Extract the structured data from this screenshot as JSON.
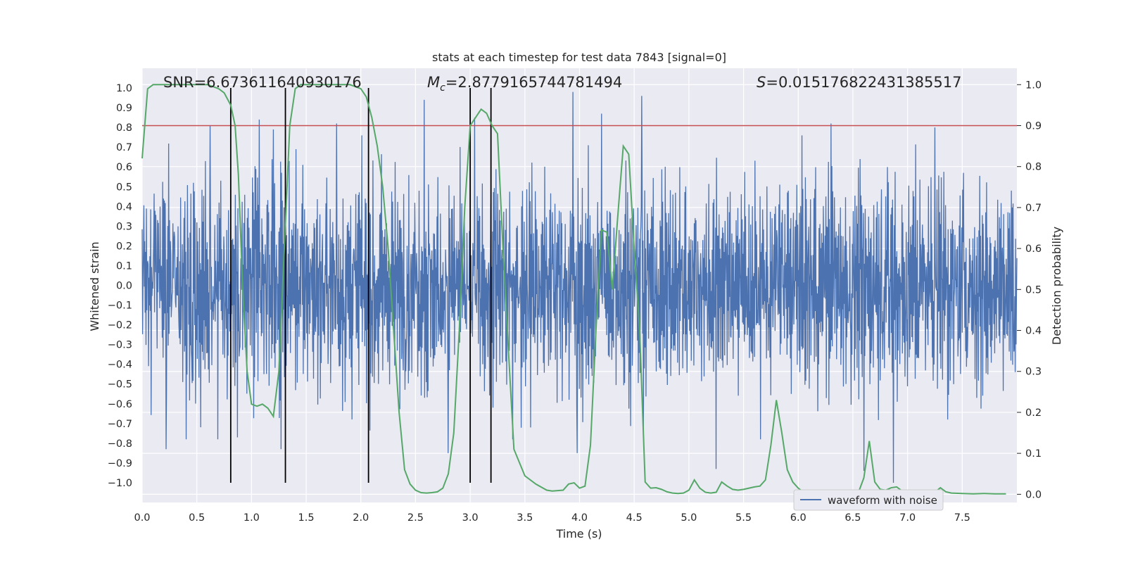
{
  "chart_data": {
    "type": "line",
    "title": "stats at each timestep for test data 7843 [signal=0]",
    "xlabel": "Time (s)",
    "ylabel_left": "Whitened strain",
    "ylabel_right": "Detection probability",
    "xlim": [
      0,
      8
    ],
    "ylim_left": [
      -1.1,
      1.1
    ],
    "ylim_right": [
      -0.02,
      1.04
    ],
    "grid": true,
    "xticks": [
      "0.0",
      "0.5",
      "1.0",
      "1.5",
      "2.0",
      "2.5",
      "3.0",
      "3.5",
      "4.0",
      "4.5",
      "5.0",
      "5.5",
      "6.0",
      "6.5",
      "7.0",
      "7.5"
    ],
    "yticks_left": [
      "1.0",
      "0.9",
      "0.8",
      "0.7",
      "0.6",
      "0.5",
      "0.4",
      "0.3",
      "0.2",
      "0.1",
      "0.0",
      "−0.1",
      "−0.2",
      "−0.3",
      "−0.4",
      "−0.5",
      "−0.6",
      "−0.7",
      "−0.8",
      "−0.9",
      "−1.0"
    ],
    "yticks_right": [
      "1.0",
      "0.9",
      "0.8",
      "0.7",
      "0.6",
      "0.5",
      "0.4",
      "0.3",
      "0.2",
      "0.1",
      "0.0"
    ],
    "annotations": {
      "snr": "SNR=6.673611640930176",
      "mc_symbol": "M",
      "mc_sub": "c",
      "mc_value": "=2.8779165744781494",
      "s_symbol": "S",
      "s_value": "=0.015176822431385517"
    },
    "legend": {
      "label": "waveform with noise",
      "position": "lower-right"
    },
    "threshold": {
      "value": 0.9,
      "axis": "right",
      "color": "#c44e52"
    },
    "vertical_markers": {
      "x": [
        0.81,
        1.31,
        2.07,
        3.0,
        3.19
      ],
      "color": "#000000"
    },
    "waveform": {
      "name": "waveform with noise",
      "color": "#4c72b0",
      "x_range": [
        0,
        8
      ],
      "samples": 2048,
      "typical_envelope": 0.45,
      "spikes": [
        {
          "x": 0.62,
          "y": 0.81
        },
        {
          "x": 1.07,
          "y": 0.84
        },
        {
          "x": 1.2,
          "y": 0.79
        },
        {
          "x": 1.78,
          "y": 0.82
        },
        {
          "x": 2.58,
          "y": 0.94
        },
        {
          "x": 3.94,
          "y": 0.98
        },
        {
          "x": 4.2,
          "y": 0.87
        },
        {
          "x": 4.57,
          "y": 0.96
        },
        {
          "x": 3.04,
          "y": 0.85
        },
        {
          "x": 6.3,
          "y": 0.82
        },
        {
          "x": 7.25,
          "y": 0.8
        },
        {
          "x": 0.22,
          "y": -0.83
        },
        {
          "x": 0.87,
          "y": -0.77
        },
        {
          "x": 1.27,
          "y": -0.83
        },
        {
          "x": 2.8,
          "y": -0.85
        },
        {
          "x": 3.98,
          "y": -0.85
        },
        {
          "x": 5.25,
          "y": -0.93
        },
        {
          "x": 6.87,
          "y": -1.0
        },
        {
          "x": 6.6,
          "y": -0.94
        }
      ]
    },
    "probability": {
      "name": "detection probability",
      "color": "#55a868",
      "axis": "right",
      "x": [
        0.0,
        0.05,
        0.1,
        0.2,
        0.3,
        0.4,
        0.5,
        0.6,
        0.7,
        0.75,
        0.81,
        0.85,
        0.88,
        0.92,
        0.96,
        1.0,
        1.05,
        1.1,
        1.15,
        1.2,
        1.25,
        1.3,
        1.35,
        1.4,
        1.45,
        1.5,
        1.6,
        1.7,
        1.8,
        1.9,
        2.0,
        2.05,
        2.1,
        2.15,
        2.2,
        2.25,
        2.3,
        2.35,
        2.4,
        2.45,
        2.5,
        2.55,
        2.6,
        2.65,
        2.7,
        2.75,
        2.8,
        2.85,
        2.9,
        2.95,
        3.0,
        3.05,
        3.1,
        3.15,
        3.2,
        3.25,
        3.3,
        3.35,
        3.4,
        3.5,
        3.6,
        3.7,
        3.75,
        3.8,
        3.85,
        3.9,
        3.95,
        4.0,
        4.05,
        4.1,
        4.15,
        4.2,
        4.25,
        4.3,
        4.35,
        4.4,
        4.45,
        4.5,
        4.55,
        4.6,
        4.65,
        4.7,
        4.75,
        4.8,
        4.85,
        4.9,
        4.95,
        5.0,
        5.05,
        5.1,
        5.15,
        5.2,
        5.25,
        5.3,
        5.35,
        5.4,
        5.45,
        5.5,
        5.55,
        5.6,
        5.65,
        5.7,
        5.75,
        5.8,
        5.85,
        5.9,
        5.95,
        6.0,
        6.05,
        6.1,
        6.2,
        6.3,
        6.4,
        6.5,
        6.55,
        6.6,
        6.65,
        6.7,
        6.75,
        6.8,
        6.85,
        6.9,
        6.95,
        7.0,
        7.1,
        7.2,
        7.25,
        7.3,
        7.35,
        7.4,
        7.5,
        7.6,
        7.7,
        7.8,
        7.9
      ],
      "y": [
        0.82,
        0.99,
        1.0,
        1.0,
        1.0,
        1.0,
        1.0,
        1.0,
        0.99,
        0.98,
        0.95,
        0.9,
        0.78,
        0.5,
        0.3,
        0.22,
        0.215,
        0.22,
        0.21,
        0.19,
        0.3,
        0.6,
        0.9,
        0.99,
        1.0,
        1.0,
        1.0,
        1.0,
        1.0,
        1.0,
        0.99,
        0.97,
        0.92,
        0.85,
        0.75,
        0.6,
        0.4,
        0.2,
        0.06,
        0.025,
        0.01,
        0.004,
        0.003,
        0.004,
        0.006,
        0.015,
        0.05,
        0.15,
        0.4,
        0.7,
        0.9,
        0.92,
        0.94,
        0.93,
        0.9,
        0.88,
        0.6,
        0.35,
        0.11,
        0.045,
        0.025,
        0.01,
        0.008,
        0.009,
        0.01,
        0.025,
        0.028,
        0.015,
        0.02,
        0.12,
        0.4,
        0.645,
        0.64,
        0.5,
        0.68,
        0.85,
        0.83,
        0.6,
        0.4,
        0.03,
        0.015,
        0.016,
        0.012,
        0.006,
        0.003,
        0.002,
        0.003,
        0.01,
        0.035,
        0.015,
        0.005,
        0.003,
        0.005,
        0.03,
        0.02,
        0.012,
        0.01,
        0.012,
        0.015,
        0.018,
        0.02,
        0.035,
        0.12,
        0.23,
        0.15,
        0.06,
        0.03,
        0.015,
        0.005,
        0.002,
        0.001,
        0.001,
        0.001,
        0.001,
        0.004,
        0.04,
        0.13,
        0.03,
        0.012,
        0.01,
        0.016,
        0.018,
        0.008,
        0.005,
        0.004,
        0.003,
        0.005,
        0.016,
        0.006,
        0.003,
        0.002,
        0.001,
        0.002,
        0.001,
        0.001
      ]
    }
  }
}
